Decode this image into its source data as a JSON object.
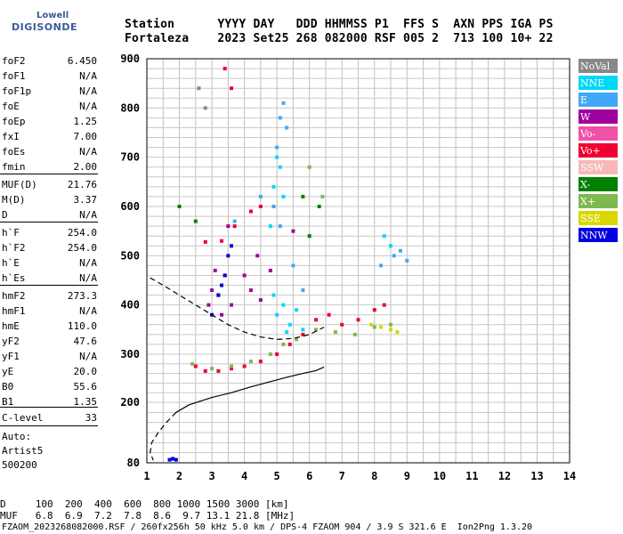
{
  "logo": {
    "top": "Lowell",
    "bottom": "DIGISONDE"
  },
  "header": {
    "line1": "Station      YYYY DAY   DDD HHMMSS P1  FFS S  AXN PPS IGA PS",
    "line2": "Fortaleza    2023 Set25 268 082000 RSF 005 2  713 100 10+ 22"
  },
  "params": [
    {
      "name": "foF2",
      "value": "6.450"
    },
    {
      "name": "foF1",
      "value": "N/A"
    },
    {
      "name": "foF1p",
      "value": "N/A"
    },
    {
      "name": "foE",
      "value": "N/A"
    },
    {
      "name": "foEp",
      "value": "1.25"
    },
    {
      "name": "fxI",
      "value": "7.00"
    },
    {
      "name": "foEs",
      "value": "N/A"
    },
    {
      "name": "fmin",
      "value": "2.00"
    },
    {
      "name": "MUF(D)",
      "value": "21.76"
    },
    {
      "name": "M(D)",
      "value": "3.37"
    },
    {
      "name": "D",
      "value": "N/A"
    },
    {
      "name": "h`F",
      "value": "254.0"
    },
    {
      "name": "h`F2",
      "value": "254.0"
    },
    {
      "name": "h`E",
      "value": "N/A"
    },
    {
      "name": "h`Es",
      "value": "N/A"
    },
    {
      "name": "hmF2",
      "value": "273.3"
    },
    {
      "name": "hmF1",
      "value": "N/A"
    },
    {
      "name": "hmE",
      "value": "110.0"
    },
    {
      "name": "yF2",
      "value": "47.6"
    },
    {
      "name": "yF1",
      "value": "N/A"
    },
    {
      "name": "yE",
      "value": "20.0"
    },
    {
      "name": "B0",
      "value": "55.6"
    },
    {
      "name": "B1",
      "value": "1.35"
    },
    {
      "name": "C-level",
      "value": "33"
    }
  ],
  "auto": {
    "line1": "Auto:",
    "line2": "Artist5",
    "line3": "500200"
  },
  "legend": [
    {
      "label": "NoVal",
      "color": "#888888"
    },
    {
      "label": "NNE",
      "color": "#00d8f8"
    },
    {
      "label": "E",
      "color": "#40a8f8"
    },
    {
      "label": "W",
      "color": "#a000a0"
    },
    {
      "label": "Vo-",
      "color": "#f050a8"
    },
    {
      "label": "Vo+",
      "color": "#f00030"
    },
    {
      "label": "SSW",
      "color": "#f8b8b8"
    },
    {
      "label": "X-",
      "color": "#008000"
    },
    {
      "label": "X+",
      "color": "#80b850"
    },
    {
      "label": "SSE",
      "color": "#d8d800"
    },
    {
      "label": "NNW",
      "color": "#0000e0"
    }
  ],
  "footer": {
    "d_line": "D     100  200  400  600  800 1000 1500 3000 [km]",
    "muf_line": "MUF   6.8  6.9  7.2  7.8  8.6  9.7 13.1 21.8 [MHz]",
    "file_line": "FZAOM_2023268082000.RSF / 260fx256h 50 kHz 5.0 km / DPS-4 FZAOM 904 / 3.9 S 321.6 E  Ion2Png 1.3.20"
  },
  "chart_data": {
    "type": "scatter",
    "xlim": [
      1,
      14
    ],
    "ylim": [
      80,
      900
    ],
    "xticks": [
      "1",
      "2",
      "3",
      "4",
      "5",
      "6",
      "7",
      "8",
      "9",
      "10",
      "11",
      "12",
      "13",
      "14"
    ],
    "yticks": [
      "80",
      "200",
      "300",
      "400",
      "500",
      "600",
      "700",
      "800",
      "900"
    ],
    "grid": true,
    "series": [
      {
        "name": "NNE",
        "color": "#00d8f8",
        "points": [
          [
            4.8,
            560
          ],
          [
            4.9,
            640
          ],
          [
            5.0,
            700
          ],
          [
            5.1,
            680
          ],
          [
            5.2,
            620
          ],
          [
            5.0,
            380
          ],
          [
            5.2,
            400
          ],
          [
            5.4,
            360
          ],
          [
            5.6,
            390
          ],
          [
            5.8,
            350
          ],
          [
            4.9,
            420
          ],
          [
            5.3,
            345
          ],
          [
            8.3,
            540
          ],
          [
            8.5,
            520
          ]
        ]
      },
      {
        "name": "E",
        "color": "#40a8f8",
        "points": [
          [
            5.0,
            720
          ],
          [
            5.1,
            780
          ],
          [
            5.2,
            810
          ],
          [
            5.3,
            760
          ],
          [
            4.9,
            600
          ],
          [
            5.1,
            560
          ],
          [
            4.5,
            620
          ],
          [
            5.5,
            480
          ],
          [
            5.8,
            430
          ],
          [
            8.6,
            500
          ],
          [
            8.8,
            510
          ],
          [
            9.0,
            490
          ],
          [
            8.2,
            480
          ],
          [
            3.7,
            570
          ]
        ]
      },
      {
        "name": "W",
        "color": "#a000a0",
        "points": [
          [
            3.0,
            430
          ],
          [
            3.2,
            420
          ],
          [
            3.4,
            460
          ],
          [
            2.9,
            400
          ],
          [
            3.6,
            400
          ],
          [
            3.3,
            380
          ],
          [
            3.1,
            470
          ],
          [
            4.0,
            460
          ],
          [
            4.2,
            430
          ],
          [
            4.4,
            500
          ],
          [
            4.5,
            410
          ],
          [
            4.8,
            470
          ],
          [
            5.5,
            550
          ],
          [
            3.5,
            560
          ]
        ]
      },
      {
        "name": "Vo+",
        "color": "#f00030",
        "points": [
          [
            2.5,
            275
          ],
          [
            2.8,
            265
          ],
          [
            3.2,
            265
          ],
          [
            3.6,
            270
          ],
          [
            4.0,
            275
          ],
          [
            4.5,
            285
          ],
          [
            5.0,
            300
          ],
          [
            5.4,
            320
          ],
          [
            5.8,
            340
          ],
          [
            6.2,
            370
          ],
          [
            6.6,
            380
          ],
          [
            7.0,
            360
          ],
          [
            7.5,
            370
          ],
          [
            8.0,
            390
          ],
          [
            8.3,
            400
          ],
          [
            2.8,
            528
          ],
          [
            3.3,
            530
          ],
          [
            3.7,
            560
          ],
          [
            4.2,
            590
          ],
          [
            4.5,
            600
          ],
          [
            3.4,
            880
          ],
          [
            3.6,
            840
          ]
        ]
      },
      {
        "name": "X-",
        "color": "#008000",
        "points": [
          [
            5.8,
            620
          ],
          [
            6.0,
            540
          ],
          [
            6.3,
            600
          ],
          [
            2.0,
            600
          ],
          [
            2.5,
            570
          ]
        ]
      },
      {
        "name": "X+",
        "color": "#80b850",
        "points": [
          [
            2.4,
            280
          ],
          [
            3.0,
            270
          ],
          [
            3.6,
            275
          ],
          [
            4.2,
            285
          ],
          [
            4.8,
            300
          ],
          [
            5.2,
            320
          ],
          [
            5.6,
            330
          ],
          [
            6.2,
            350
          ],
          [
            6.8,
            345
          ],
          [
            7.4,
            340
          ],
          [
            8.0,
            355
          ],
          [
            8.5,
            360
          ],
          [
            6.0,
            680
          ],
          [
            6.4,
            620
          ]
        ]
      },
      {
        "name": "SSE",
        "color": "#d8d800",
        "points": [
          [
            7.9,
            360
          ],
          [
            8.2,
            355
          ],
          [
            8.5,
            350
          ],
          [
            8.7,
            345
          ]
        ]
      },
      {
        "name": "NNW",
        "color": "#0000e0",
        "points": [
          [
            3.2,
            420
          ],
          [
            3.3,
            440
          ],
          [
            3.4,
            460
          ],
          [
            3.5,
            500
          ],
          [
            3.6,
            520
          ],
          [
            3.0,
            380
          ],
          [
            1.7,
            86
          ],
          [
            1.8,
            88
          ],
          [
            1.9,
            86
          ]
        ]
      },
      {
        "name": "NoVal",
        "color": "#888888",
        "points": [
          [
            2.6,
            840
          ],
          [
            2.8,
            800
          ]
        ]
      }
    ],
    "profile_solid": [
      [
        1.9,
        180
      ],
      [
        2.3,
        195
      ],
      [
        3.0,
        210
      ],
      [
        3.6,
        220
      ],
      [
        4.2,
        232
      ],
      [
        4.8,
        243
      ],
      [
        5.3,
        252
      ],
      [
        5.8,
        260
      ],
      [
        6.2,
        266
      ],
      [
        6.45,
        273.3
      ]
    ],
    "profile_dashed": [
      [
        1.1,
        455
      ],
      [
        1.5,
        440
      ],
      [
        2.0,
        420
      ],
      [
        2.5,
        400
      ],
      [
        3.0,
        380
      ],
      [
        3.5,
        360
      ],
      [
        4.0,
        345
      ],
      [
        4.5,
        335
      ],
      [
        5.0,
        330
      ],
      [
        5.5,
        332
      ],
      [
        6.0,
        340
      ],
      [
        6.45,
        355
      ]
    ],
    "profile_dashed_low": [
      [
        1.9,
        180
      ],
      [
        1.6,
        160
      ],
      [
        1.35,
        140
      ],
      [
        1.15,
        120
      ],
      [
        1.1,
        100
      ],
      [
        1.2,
        85
      ]
    ]
  }
}
